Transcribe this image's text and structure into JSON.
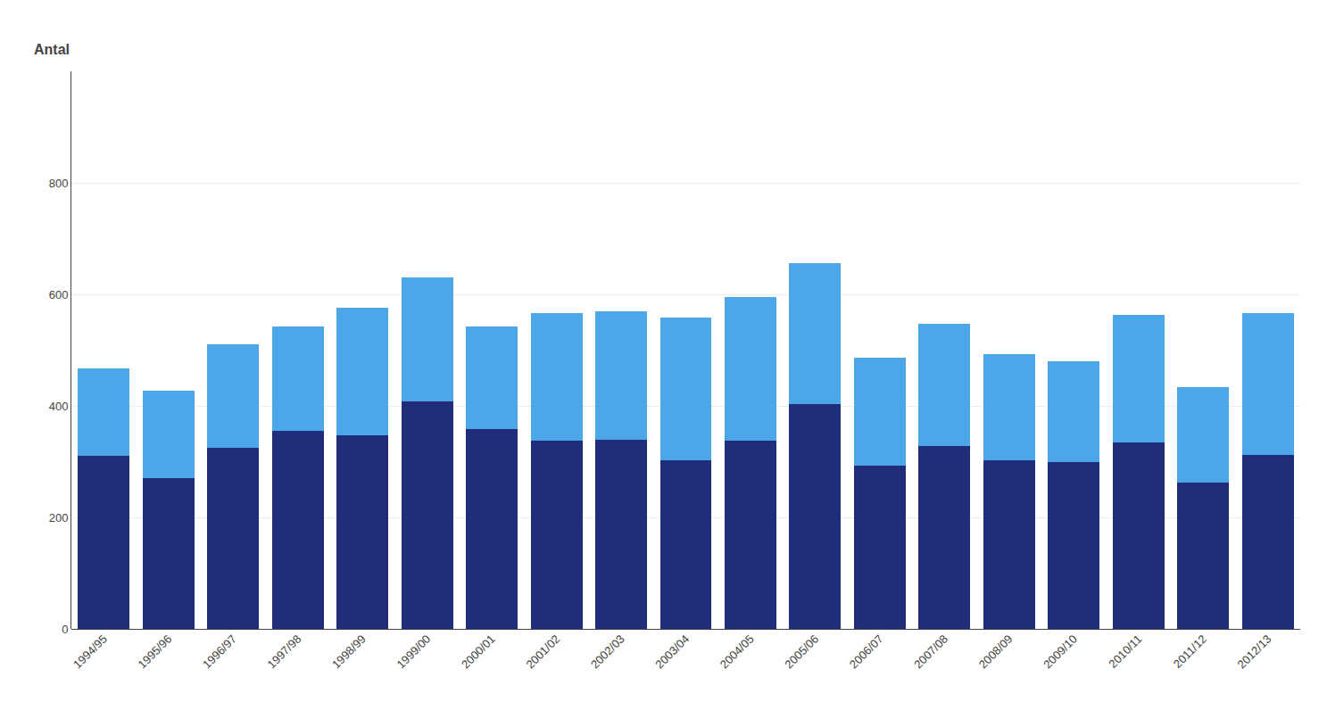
{
  "chart_data": {
    "type": "bar",
    "stacked": true,
    "categories": [
      "1994/95",
      "1995/96",
      "1996/97",
      "1997/98",
      "1998/99",
      "1999/00",
      "2000/01",
      "2001/02",
      "2002/03",
      "2003/04",
      "2004/05",
      "2005/06",
      "2006/07",
      "2007/08",
      "2008/09",
      "2009/10",
      "2010/11",
      "2011/12",
      "2012/13"
    ],
    "series": [
      {
        "color": "#1F2D7B",
        "values": [
          310,
          270,
          325,
          355,
          348,
          408,
          358,
          338,
          340,
          303,
          338,
          403,
          293,
          328,
          303,
          300,
          335,
          262,
          312
        ]
      },
      {
        "color": "#4DA6E8",
        "values": [
          158,
          158,
          185,
          188,
          228,
          222,
          185,
          228,
          230,
          255,
          258,
          253,
          193,
          220,
          190,
          180,
          228,
          172,
          255
        ]
      }
    ],
    "ylabel": "Antal",
    "ylim": [
      0,
      1000
    ],
    "yticks": [
      0,
      200,
      400,
      600,
      800
    ],
    "grid": true
  }
}
